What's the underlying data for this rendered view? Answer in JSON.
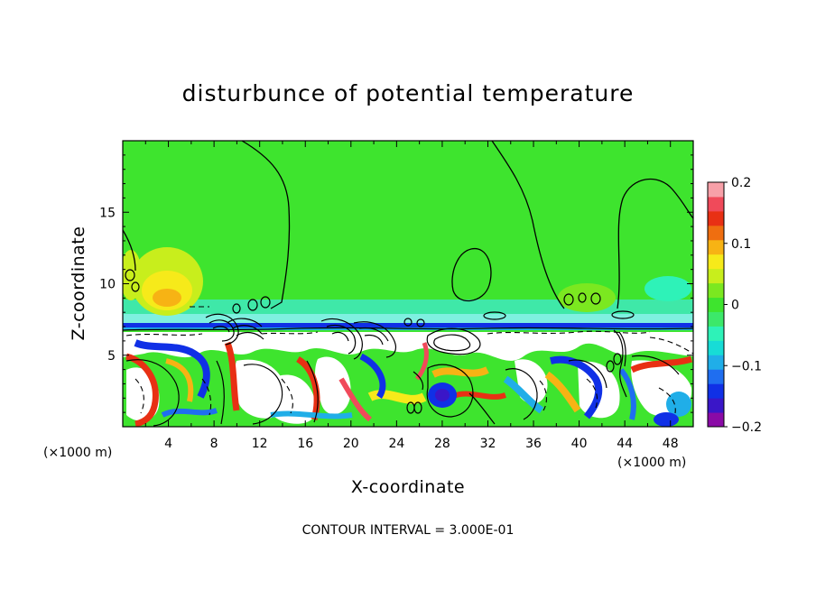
{
  "chart_data": {
    "type": "heatmap",
    "title": "disturbunce of potential temperature",
    "xlabel": "X-coordinate",
    "ylabel": "Z-coordinate",
    "x_unit_left": "(×1000 m)",
    "x_unit_right": "(×1000 m)",
    "footnote": "CONTOUR INTERVAL = 3.000E-01",
    "xlim": [
      0,
      50
    ],
    "ylim": [
      0,
      20
    ],
    "x_ticks": [
      4,
      8,
      12,
      16,
      20,
      24,
      28,
      32,
      36,
      40,
      44,
      48
    ],
    "x_tick_labels": [
      "4",
      "8",
      "12",
      "16",
      "20",
      "24",
      "28",
      "32",
      "36",
      "40",
      "44",
      "48"
    ],
    "y_ticks": [
      5,
      10,
      15
    ],
    "y_tick_labels": [
      "5",
      "10",
      "15"
    ],
    "colorbar": {
      "range": [
        -0.2,
        0.2
      ],
      "ticks": [
        0.2,
        0.1,
        0,
        -0.1,
        -0.2
      ],
      "tick_labels": [
        "0.2",
        "0.1",
        "0",
        "−0.1",
        "−0.2"
      ],
      "colors": [
        "#8a0aa6",
        "#3a16c8",
        "#1030e6",
        "#1f6ef0",
        "#20aee8",
        "#17dcd6",
        "#2ef2b8",
        "#3ce86a",
        "#3ee42e",
        "#7be820",
        "#c8ee1c",
        "#f6ea1a",
        "#f7b314",
        "#ef6e10",
        "#e83014",
        "#f04a5a",
        "#f7a0a8"
      ]
    },
    "interface_height": 7.2,
    "contour_interval": 0.3
  }
}
